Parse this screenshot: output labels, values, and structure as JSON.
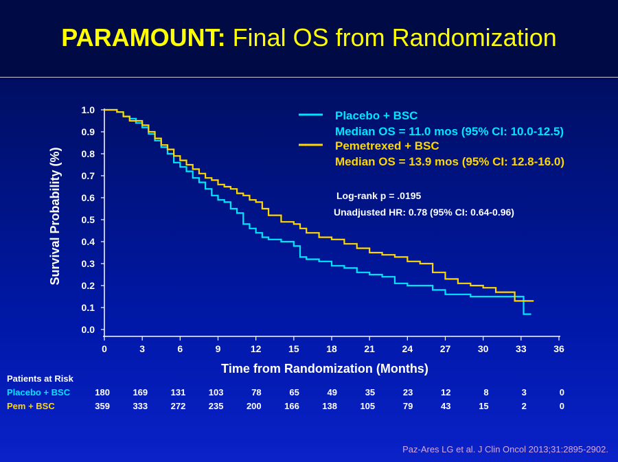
{
  "header": {
    "title_bold": "PARAMOUNT:",
    "title_rest": " Final OS from Randomization"
  },
  "colors": {
    "background": "#0018a8",
    "title": "#ffff00",
    "placebo": "#00e5ff",
    "pemetrexed": "#ffd700",
    "stats_text": "#ffffff"
  },
  "chart_data": {
    "type": "line",
    "title": "",
    "xlabel": "Time from Randomization (Months)",
    "ylabel": "Survival  Probability (%)",
    "xlim": [
      0,
      36
    ],
    "ylim": [
      0,
      1.0
    ],
    "xticks": [
      "0",
      "3",
      "6",
      "9",
      "12",
      "15",
      "18",
      "21",
      "24",
      "27",
      "30",
      "33",
      "36"
    ],
    "yticks": [
      "0.0",
      "0.1",
      "0.2",
      "0.3",
      "0.4",
      "0.5",
      "0.6",
      "0.7",
      "0.8",
      "0.9",
      "1.0"
    ],
    "grid": false,
    "legend_position": "top-right",
    "series": [
      {
        "name": "Placebo + BSC",
        "median": "Median OS = 11.0 mos (95% CI: 10.0-12.5)",
        "color": "#00e5ff",
        "x": [
          0,
          0.5,
          1.0,
          1.5,
          2.0,
          2.5,
          3.0,
          3.5,
          4.0,
          4.5,
          5.0,
          5.5,
          6.0,
          6.5,
          7.0,
          7.5,
          8.0,
          8.5,
          9.0,
          9.5,
          10.0,
          10.5,
          11.0,
          11.5,
          12.0,
          12.5,
          13.0,
          14.0,
          15.0,
          15.5,
          16.0,
          17.0,
          18.0,
          19.0,
          20.0,
          21.0,
          22.0,
          23.0,
          24.0,
          25.0,
          26.0,
          27.0,
          28.0,
          29.0,
          30.0,
          31.0,
          32.0,
          33.0,
          33.2,
          33.2,
          33.8
        ],
        "y": [
          1.0,
          1.0,
          0.99,
          0.97,
          0.96,
          0.94,
          0.92,
          0.89,
          0.86,
          0.83,
          0.8,
          0.76,
          0.74,
          0.72,
          0.69,
          0.67,
          0.64,
          0.61,
          0.59,
          0.58,
          0.55,
          0.53,
          0.48,
          0.46,
          0.44,
          0.42,
          0.41,
          0.4,
          0.38,
          0.33,
          0.32,
          0.31,
          0.29,
          0.28,
          0.26,
          0.25,
          0.24,
          0.21,
          0.2,
          0.2,
          0.18,
          0.16,
          0.16,
          0.15,
          0.15,
          0.15,
          0.15,
          0.15,
          0.15,
          0.07,
          0.07
        ]
      },
      {
        "name": "Pemetrexed + BSC",
        "median": "Median OS = 13.9 mos (95% CI: 12.8-16.0)",
        "color": "#ffd700",
        "x": [
          0,
          0.5,
          1.0,
          1.5,
          2.0,
          2.5,
          3.0,
          3.5,
          4.0,
          4.5,
          5.0,
          5.5,
          6.0,
          6.5,
          7.0,
          7.5,
          8.0,
          8.5,
          9.0,
          9.5,
          10.0,
          10.5,
          11.0,
          11.5,
          12.0,
          12.5,
          13.0,
          14.0,
          15.0,
          15.5,
          16.0,
          17.0,
          18.0,
          19.0,
          20.0,
          21.0,
          22.0,
          23.0,
          24.0,
          25.0,
          26.0,
          27.0,
          28.0,
          29.0,
          30.0,
          31.0,
          32.0,
          32.5,
          32.5,
          34.0
        ],
        "y": [
          1.0,
          1.0,
          0.99,
          0.97,
          0.95,
          0.95,
          0.93,
          0.9,
          0.87,
          0.84,
          0.82,
          0.79,
          0.77,
          0.75,
          0.73,
          0.71,
          0.69,
          0.68,
          0.66,
          0.65,
          0.64,
          0.62,
          0.61,
          0.59,
          0.58,
          0.55,
          0.52,
          0.49,
          0.48,
          0.46,
          0.44,
          0.42,
          0.41,
          0.39,
          0.37,
          0.35,
          0.34,
          0.33,
          0.31,
          0.3,
          0.26,
          0.23,
          0.21,
          0.2,
          0.19,
          0.17,
          0.17,
          0.17,
          0.13,
          0.13
        ]
      }
    ],
    "annotations": [
      "Log-rank p = .0195",
      "Unadjusted HR: 0.78 (95% CI: 0.64-0.96)"
    ]
  },
  "risk_table": {
    "header": "Patients at Risk",
    "times": [
      0,
      3,
      6,
      9,
      12,
      15,
      18,
      21,
      24,
      27,
      30,
      33,
      36
    ],
    "rows": [
      {
        "label": "Placebo + BSC",
        "color": "#00e5ff",
        "values": [
          "180",
          "169",
          "131",
          "103",
          "78",
          "65",
          "49",
          "35",
          "23",
          "12",
          "8",
          "3",
          "0"
        ]
      },
      {
        "label": "Pem + BSC",
        "color": "#ffd700",
        "values": [
          "359",
          "333",
          "272",
          "235",
          "200",
          "166",
          "138",
          "105",
          "79",
          "43",
          "15",
          "2",
          "0"
        ]
      }
    ]
  },
  "citation": "Paz-Ares LG et al. J Clin Oncol 2013;31:2895-2902."
}
